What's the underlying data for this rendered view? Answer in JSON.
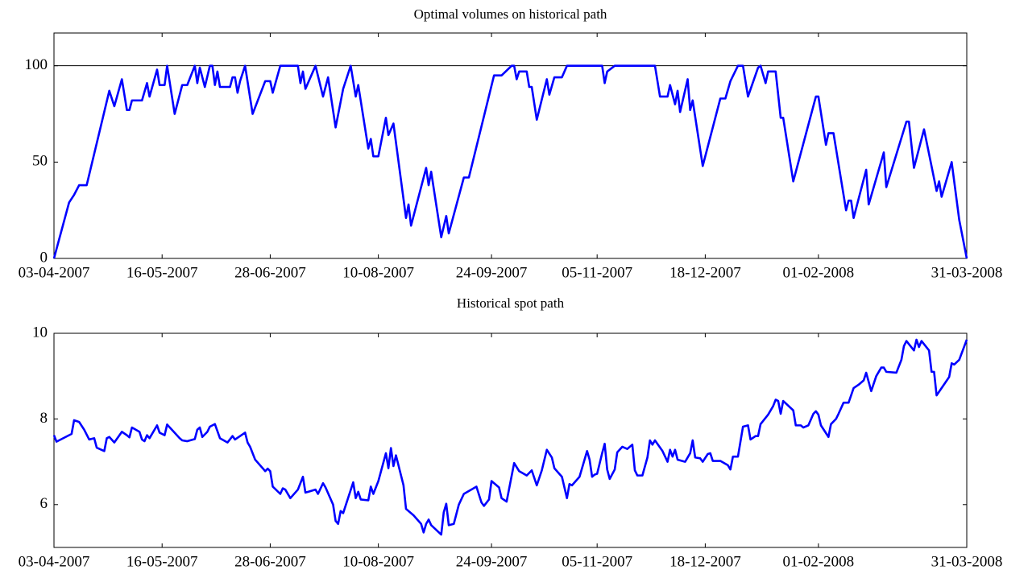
{
  "chart_data": [
    {
      "type": "line",
      "title": "Optimal volumes on historical path",
      "color": "#0000ff",
      "x": [
        "03-04-2007",
        "09-04-2007",
        "11-04-2007",
        "13-04-2007",
        "16-04-2007",
        "25-04-2007",
        "27-04-2007",
        "30-04-2007",
        "02-05-2007",
        "03-05-2007",
        "04-05-2007",
        "08-05-2007",
        "10-05-2007",
        "11-05-2007",
        "14-05-2007",
        "15-05-2007",
        "17-05-2007",
        "18-05-2007",
        "21-05-2007",
        "24-05-2007",
        "26-05-2007",
        "29-05-2007",
        "30-05-2007",
        "31-05-2007",
        "02-06-2007",
        "04-06-2007",
        "05-06-2007",
        "06-06-2007",
        "07-06-2007",
        "08-06-2007",
        "12-06-2007",
        "13-06-2007",
        "14-06-2007",
        "15-06-2007",
        "16-06-2007",
        "18-06-2007",
        "21-06-2007",
        "26-06-2007",
        "28-06-2007",
        "29-06-2007",
        "02-07-2007",
        "09-07-2007",
        "10-07-2007",
        "11-07-2007",
        "12-07-2007",
        "16-07-2007",
        "19-07-2007",
        "21-07-2007",
        "24-07-2007",
        "27-07-2007",
        "30-07-2007",
        "01-08-2007",
        "02-08-2007",
        "06-08-2007",
        "07-08-2007",
        "08-08-2007",
        "10-08-2007",
        "13-08-2007",
        "14-08-2007",
        "16-08-2007",
        "21-08-2007",
        "22-08-2007",
        "23-08-2007",
        "29-08-2007",
        "30-08-2007",
        "31-08-2007",
        "04-09-2007",
        "06-09-2007",
        "07-09-2007",
        "13-09-2007",
        "15-09-2007",
        "25-09-2007",
        "28-09-2007",
        "02-10-2007",
        "03-10-2007",
        "04-10-2007",
        "05-10-2007",
        "08-10-2007",
        "09-10-2007",
        "10-10-2007",
        "12-10-2007",
        "16-10-2007",
        "17-10-2007",
        "19-10-2007",
        "22-10-2007",
        "24-10-2007",
        "07-11-2007",
        "08-11-2007",
        "09-11-2007",
        "12-11-2007",
        "28-11-2007",
        "30-11-2007",
        "03-12-2007",
        "04-12-2007",
        "06-12-2007",
        "07-12-2007",
        "08-12-2007",
        "11-12-2007",
        "12-12-2007",
        "13-12-2007",
        "17-12-2007",
        "24-12-2007",
        "26-12-2007",
        "28-12-2007",
        "31-12-2007",
        "02-01-2008",
        "04-01-2008",
        "08-01-2008",
        "09-01-2008",
        "11-01-2008",
        "12-01-2008",
        "15-01-2008",
        "17-01-2008",
        "18-01-2008",
        "22-01-2008",
        "31-01-2008",
        "01-02-2008",
        "04-02-2008",
        "05-02-2008",
        "07-02-2008",
        "12-02-2008",
        "13-02-2008",
        "14-02-2008",
        "15-02-2008",
        "20-02-2008",
        "21-02-2008",
        "27-02-2008",
        "28-02-2008",
        "07-03-2008",
        "08-03-2008",
        "10-03-2008",
        "14-03-2008",
        "19-03-2008",
        "20-03-2008",
        "21-03-2008",
        "25-03-2008",
        "28-03-2008",
        "31-03-2008"
      ],
      "values": [
        0,
        29,
        33,
        38,
        38,
        87,
        79,
        93,
        77,
        77,
        82,
        82,
        91,
        84,
        98,
        90,
        90,
        100,
        75,
        90,
        90,
        100,
        91,
        99,
        89,
        100,
        100,
        90,
        97,
        89,
        89,
        94,
        94,
        86,
        92,
        100,
        75,
        92,
        92,
        86,
        100,
        100,
        91,
        97,
        88,
        100,
        84,
        94,
        68,
        88,
        100,
        84,
        90,
        57,
        62,
        53,
        53,
        73,
        64,
        70,
        21,
        28,
        17,
        47,
        38,
        45,
        11,
        22,
        13,
        42,
        42,
        95,
        95,
        100,
        100,
        93,
        97,
        97,
        89,
        89,
        72,
        93,
        85,
        94,
        94,
        100,
        100,
        91,
        97,
        100,
        100,
        84,
        84,
        90,
        80,
        87,
        76,
        93,
        77,
        82,
        48,
        83,
        83,
        92,
        100,
        100,
        84,
        99,
        100,
        91,
        97,
        97,
        73,
        73,
        40,
        84,
        84,
        59,
        65,
        65,
        25,
        30,
        30,
        21,
        46,
        28,
        55,
        37,
        71,
        71,
        47,
        67,
        35,
        40,
        32,
        50,
        20,
        0
      ],
      "xlim": [
        "03-04-2007",
        "31-03-2008"
      ],
      "xticks": [
        "03-04-2007",
        "16-05-2007",
        "28-06-2007",
        "10-08-2007",
        "24-09-2007",
        "05-11-2007",
        "18-12-2007",
        "01-02-2008",
        "31-03-2008"
      ],
      "ylim": [
        0,
        117
      ],
      "yticks": [
        0,
        50,
        100
      ],
      "hline": 100
    },
    {
      "type": "line",
      "title": "Historical spot path",
      "color": "#0000ff",
      "x": [
        "03-04-2007",
        "04-04-2007",
        "10-04-2007",
        "11-04-2007",
        "13-04-2007",
        "15-04-2007",
        "17-04-2007",
        "19-04-2007",
        "20-04-2007",
        "23-04-2007",
        "24-04-2007",
        "25-04-2007",
        "27-04-2007",
        "30-04-2007",
        "02-05-2007",
        "03-05-2007",
        "04-05-2007",
        "07-05-2007",
        "08-05-2007",
        "09-05-2007",
        "10-05-2007",
        "11-05-2007",
        "14-05-2007",
        "15-05-2007",
        "17-05-2007",
        "18-05-2007",
        "23-05-2007",
        "24-05-2007",
        "26-05-2007",
        "29-05-2007",
        "30-05-2007",
        "31-05-2007",
        "01-06-2007",
        "03-06-2007",
        "04-06-2007",
        "06-06-2007",
        "08-06-2007",
        "11-06-2007",
        "13-06-2007",
        "14-06-2007",
        "18-06-2007",
        "19-06-2007",
        "20-06-2007",
        "22-06-2007",
        "25-06-2007",
        "26-06-2007",
        "27-06-2007",
        "28-06-2007",
        "29-06-2007",
        "02-07-2007",
        "03-07-2007",
        "04-07-2007",
        "06-07-2007",
        "09-07-2007",
        "11-07-2007",
        "12-07-2007",
        "16-07-2007",
        "17-07-2007",
        "19-07-2007",
        "20-07-2007",
        "23-07-2007",
        "24-07-2007",
        "25-07-2007",
        "26-07-2007",
        "27-07-2007",
        "31-07-2007",
        "01-08-2007",
        "02-08-2007",
        "03-08-2007",
        "06-08-2007",
        "07-08-2007",
        "08-08-2007",
        "10-08-2007",
        "13-08-2007",
        "14-08-2007",
        "15-08-2007",
        "16-08-2007",
        "17-08-2007",
        "20-08-2007",
        "21-08-2007",
        "24-08-2007",
        "27-08-2007",
        "28-08-2007",
        "29-08-2007",
        "30-08-2007",
        "31-08-2007",
        "04-09-2007",
        "05-09-2007",
        "06-09-2007",
        "07-09-2007",
        "09-09-2007",
        "11-09-2007",
        "13-09-2007",
        "18-09-2007",
        "20-09-2007",
        "21-09-2007",
        "23-09-2007",
        "24-09-2007",
        "27-09-2007",
        "28-09-2007",
        "30-09-2007",
        "03-10-2007",
        "05-10-2007",
        "08-10-2007",
        "10-10-2007",
        "12-10-2007",
        "14-10-2007",
        "16-10-2007",
        "18-10-2007",
        "19-10-2007",
        "22-10-2007",
        "24-10-2007",
        "25-10-2007",
        "26-10-2007",
        "29-10-2007",
        "01-11-2007",
        "02-11-2007",
        "03-11-2007",
        "04-11-2007",
        "05-11-2007",
        "07-11-2007",
        "08-11-2007",
        "09-11-2007",
        "10-11-2007",
        "12-11-2007",
        "13-11-2007",
        "15-11-2007",
        "17-11-2007",
        "19-11-2007",
        "20-11-2007",
        "21-11-2007",
        "23-11-2007",
        "25-11-2007",
        "26-11-2007",
        "27-11-2007",
        "28-11-2007",
        "01-12-2007",
        "03-12-2007",
        "04-12-2007",
        "05-12-2007",
        "06-12-2007",
        "07-12-2007",
        "10-12-2007",
        "12-12-2007",
        "13-12-2007",
        "14-12-2007",
        "16-12-2007",
        "17-12-2007",
        "19-12-2007",
        "20-12-2007",
        "21-12-2007",
        "24-12-2007",
        "27-12-2007",
        "28-12-2007",
        "29-12-2007",
        "31-12-2007",
        "02-01-2008",
        "04-01-2008",
        "05-01-2008",
        "07-01-2008",
        "08-01-2008",
        "09-01-2008",
        "12-01-2008",
        "14-01-2008",
        "15-01-2008",
        "16-01-2008",
        "17-01-2008",
        "18-01-2008",
        "22-01-2008",
        "23-01-2008",
        "25-01-2008",
        "26-01-2008",
        "28-01-2008",
        "30-01-2008",
        "31-01-2008",
        "01-02-2008",
        "02-02-2008",
        "05-02-2008",
        "06-02-2008",
        "08-02-2008",
        "09-02-2008",
        "11-02-2008",
        "13-02-2008",
        "15-02-2008",
        "17-02-2008",
        "19-02-2008",
        "20-02-2008",
        "22-02-2008",
        "24-02-2008",
        "26-02-2008",
        "27-02-2008",
        "28-02-2008",
        "03-03-2008",
        "05-03-2008",
        "06-03-2008",
        "07-03-2008",
        "10-03-2008",
        "11-03-2008",
        "12-03-2008",
        "13-03-2008",
        "16-03-2008",
        "17-03-2008",
        "18-03-2008",
        "19-03-2008",
        "24-03-2008",
        "25-03-2008",
        "26-03-2008",
        "28-03-2008",
        "31-03-2008"
      ],
      "values": [
        7.62,
        7.47,
        7.65,
        7.97,
        7.93,
        7.75,
        7.52,
        7.55,
        7.33,
        7.25,
        7.55,
        7.58,
        7.45,
        7.7,
        7.62,
        7.57,
        7.8,
        7.7,
        7.52,
        7.48,
        7.62,
        7.55,
        7.85,
        7.68,
        7.62,
        7.87,
        7.55,
        7.5,
        7.48,
        7.53,
        7.75,
        7.8,
        7.58,
        7.7,
        7.82,
        7.88,
        7.55,
        7.45,
        7.6,
        7.52,
        7.68,
        7.45,
        7.35,
        7.05,
        6.85,
        6.78,
        6.84,
        6.78,
        6.42,
        6.25,
        6.38,
        6.35,
        6.15,
        6.35,
        6.65,
        6.28,
        6.35,
        6.25,
        6.5,
        6.4,
        6.0,
        5.62,
        5.55,
        5.85,
        5.8,
        6.52,
        6.15,
        6.3,
        6.12,
        6.1,
        6.42,
        6.25,
        6.55,
        7.2,
        6.85,
        7.32,
        6.9,
        7.15,
        6.45,
        5.9,
        5.75,
        5.55,
        5.35,
        5.55,
        5.65,
        5.52,
        5.3,
        5.82,
        6.02,
        5.52,
        5.55,
        6.0,
        6.25,
        6.42,
        6.05,
        5.97,
        6.12,
        6.55,
        6.4,
        6.15,
        6.07,
        6.97,
        6.78,
        6.68,
        6.8,
        6.45,
        6.8,
        7.28,
        7.1,
        6.85,
        6.65,
        6.15,
        6.48,
        6.45,
        6.65,
        7.25,
        7.05,
        6.65,
        6.7,
        6.72,
        7.2,
        7.42,
        6.82,
        6.6,
        6.82,
        7.22,
        7.35,
        7.3,
        7.4,
        6.8,
        6.68,
        6.68,
        7.1,
        7.5,
        7.4,
        7.5,
        7.25,
        7.0,
        7.28,
        7.12,
        7.28,
        7.05,
        7.0,
        7.2,
        7.5,
        7.1,
        7.08,
        7.0,
        7.18,
        7.2,
        7.02,
        7.02,
        6.92,
        6.82,
        7.12,
        7.12,
        7.82,
        7.85,
        7.52,
        7.6,
        7.6,
        7.88,
        8.1,
        8.3,
        8.45,
        8.42,
        8.12,
        8.42,
        8.2,
        7.85,
        7.85,
        7.8,
        7.85,
        8.12,
        8.18,
        8.1,
        7.85,
        7.58,
        7.88,
        8.0,
        8.12,
        8.38,
        8.38,
        8.72,
        8.8,
        8.9,
        9.08,
        8.65,
        9.0,
        9.2,
        9.2,
        9.1,
        9.08,
        9.38,
        9.7,
        9.82,
        9.6,
        9.85,
        9.68,
        9.82,
        9.6,
        9.1,
        9.1,
        8.55,
        8.98,
        9.3,
        9.27,
        9.38,
        9.85
      ],
      "xlim": [
        "03-04-2007",
        "31-03-2008"
      ],
      "xticks": [
        "03-04-2007",
        "16-05-2007",
        "28-06-2007",
        "10-08-2007",
        "24-09-2007",
        "05-11-2007",
        "18-12-2007",
        "01-02-2008",
        "31-03-2008"
      ],
      "ylim": [
        5,
        10
      ],
      "yticks": [
        6,
        8,
        10
      ]
    }
  ]
}
